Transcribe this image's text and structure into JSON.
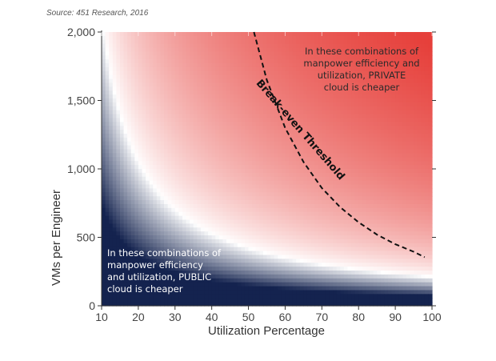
{
  "source": "Source: 451 Research, 2016",
  "chart_data": {
    "type": "heatmap",
    "xlabel": "Utilization Percentage",
    "ylabel": "VMs per Engineer",
    "xlim": [
      10,
      100
    ],
    "ylim": [
      0,
      2000
    ],
    "x_ticks": [
      10,
      20,
      30,
      40,
      50,
      60,
      70,
      80,
      90,
      100
    ],
    "y_ticks": [
      0,
      500,
      1000,
      1500,
      2000
    ],
    "y_tick_labels": [
      "0",
      "500",
      "1,000",
      "1,500",
      "2,000"
    ],
    "colors": {
      "public": "#14234f",
      "neutral": "#ffffff",
      "private": "#e6403b"
    },
    "threshold": {
      "label": "Break-even Threshold",
      "points": [
        [
          51.5,
          2000
        ],
        [
          55,
          1650
        ],
        [
          60,
          1300
        ],
        [
          65,
          1050
        ],
        [
          70,
          860
        ],
        [
          75,
          720
        ],
        [
          80,
          610
        ],
        [
          85,
          520
        ],
        [
          90,
          450
        ],
        [
          95,
          395
        ],
        [
          98,
          355
        ]
      ]
    },
    "annotations": {
      "private": [
        "In these combinations of",
        "manpower efficiency and",
        "utilization, PRIVATE",
        "cloud is cheaper"
      ],
      "public": [
        "In these combinations of",
        "manpower efficiency",
        "and utilization, PUBLIC",
        "cloud is cheaper"
      ]
    }
  }
}
